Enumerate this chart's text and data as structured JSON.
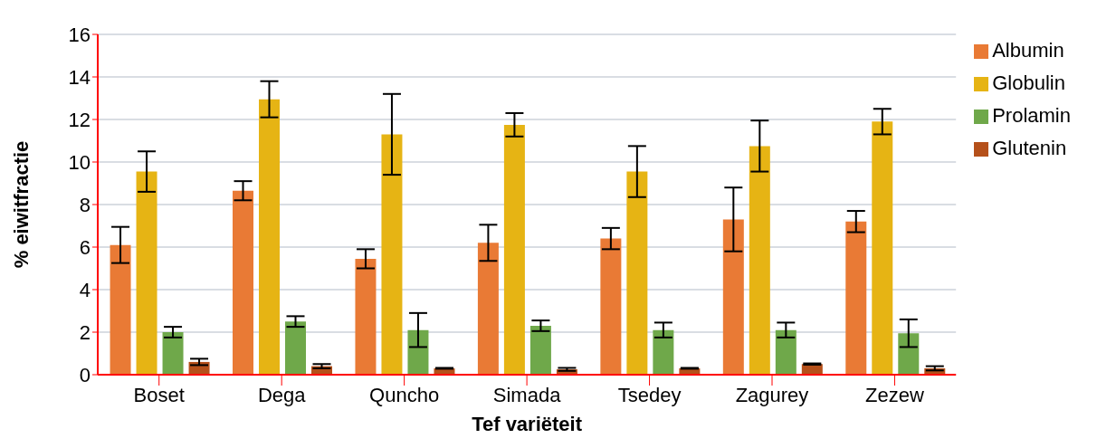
{
  "chart_data": {
    "type": "bar",
    "xlabel": "Tef variëteit",
    "ylabel": "% eiwitfractie",
    "categories": [
      "Boset",
      "Dega",
      "Quncho",
      "Simada",
      "Tsedey",
      "Zagurey",
      "Zezew"
    ],
    "series": [
      {
        "name": "Albumin",
        "color": "#e97a35",
        "values": [
          6.1,
          8.65,
          5.45,
          6.2,
          6.4,
          7.3,
          7.2
        ],
        "errors": [
          0.85,
          0.45,
          0.45,
          0.85,
          0.5,
          1.5,
          0.5
        ]
      },
      {
        "name": "Globulin",
        "color": "#e6b414",
        "values": [
          9.55,
          12.95,
          11.3,
          11.75,
          9.55,
          10.75,
          11.9
        ],
        "errors": [
          0.95,
          0.85,
          1.9,
          0.55,
          1.2,
          1.2,
          0.6
        ]
      },
      {
        "name": "Prolamin",
        "color": "#6fa84a",
        "values": [
          2.0,
          2.5,
          2.1,
          2.3,
          2.1,
          2.1,
          1.95
        ],
        "errors": [
          0.25,
          0.25,
          0.8,
          0.25,
          0.35,
          0.35,
          0.65
        ]
      },
      {
        "name": "Glutenin",
        "color": "#b5501a",
        "values": [
          0.6,
          0.4,
          0.3,
          0.25,
          0.3,
          0.5,
          0.3
        ],
        "errors": [
          0.15,
          0.1,
          0.02,
          0.07,
          0.02,
          0.03,
          0.1
        ]
      }
    ],
    "ylim": [
      0,
      16
    ],
    "yticks": [
      0,
      2,
      4,
      6,
      8,
      10,
      12,
      14,
      16
    ],
    "grid": "y",
    "legend": "top right"
  }
}
